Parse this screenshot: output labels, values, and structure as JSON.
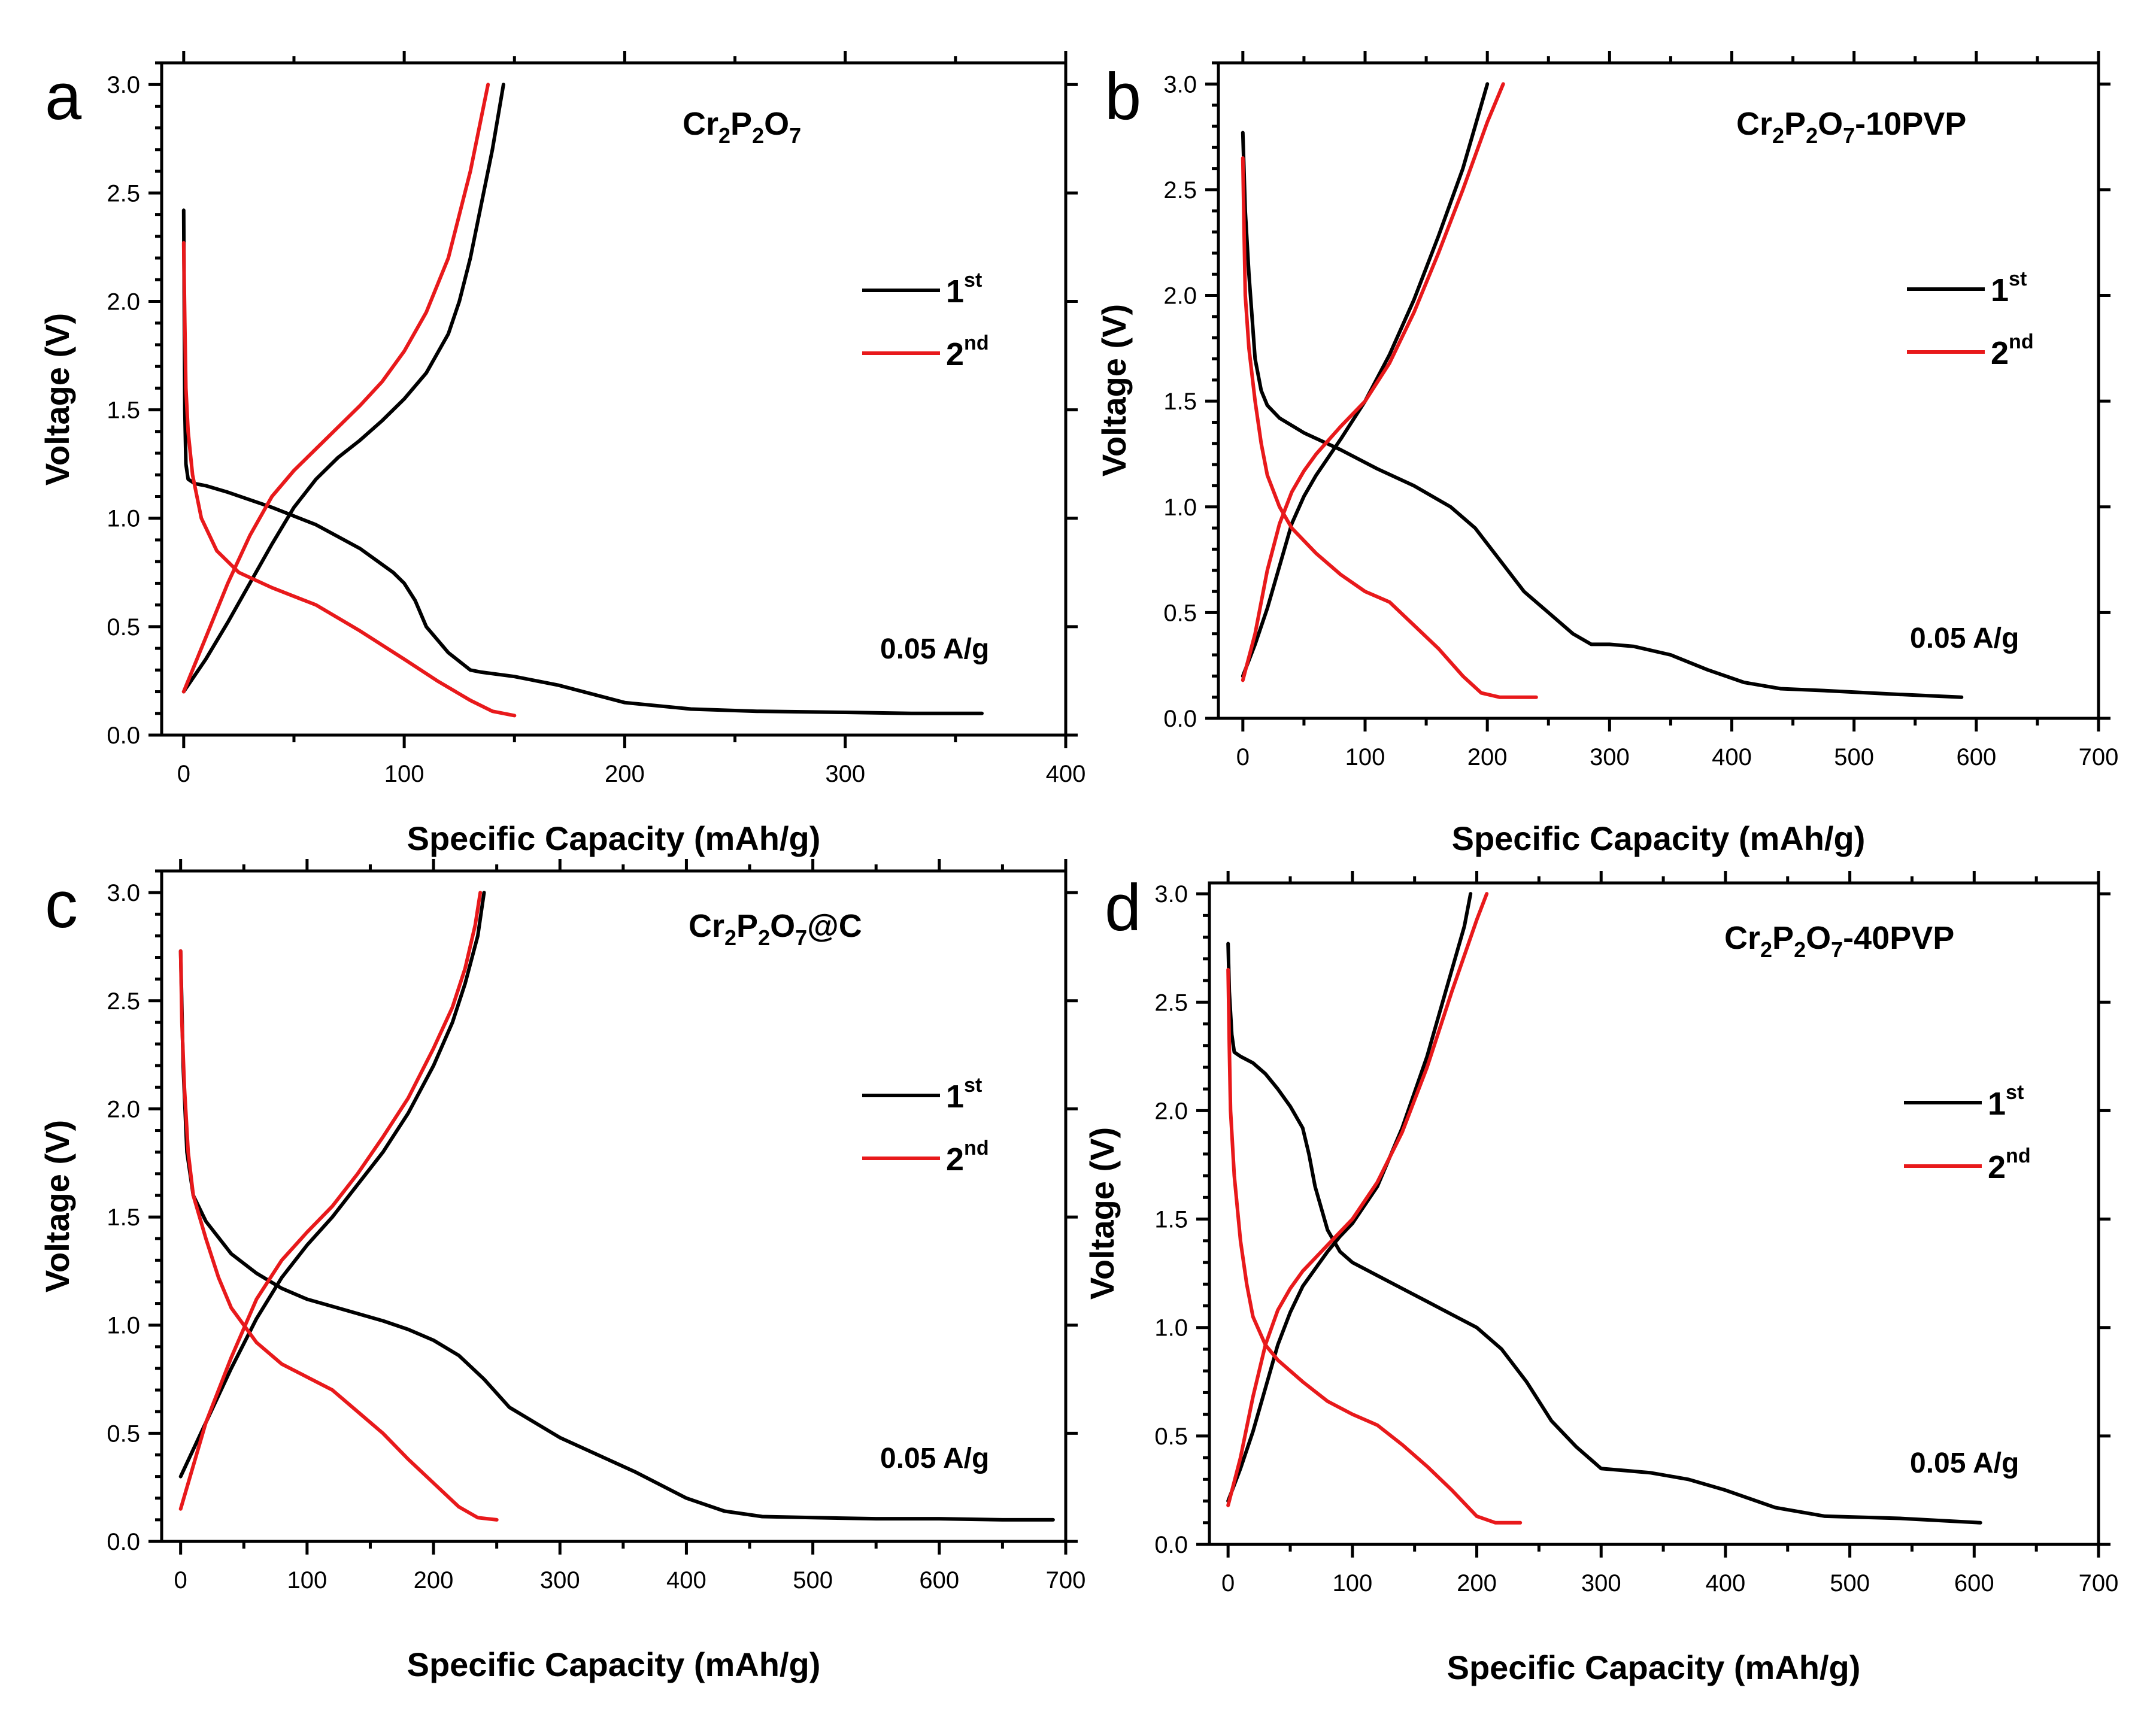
{
  "chart_data": [
    {
      "letter": "a",
      "type": "line",
      "title_parts": {
        "el1": "Cr",
        "sub1": "2",
        "el2": "P",
        "sub2": "2",
        "el3": "O",
        "sub3": "7",
        "suffix": ""
      },
      "xlabel": "Specific Capacity (mAh/g)",
      "ylabel": "Voltage (V)",
      "xlim": [
        -10,
        400
      ],
      "ylim": [
        0,
        3.1
      ],
      "xticks": [
        0,
        100,
        200,
        300,
        400
      ],
      "yticks": [
        0.0,
        0.5,
        1.0,
        1.5,
        2.0,
        2.5,
        3.0
      ],
      "rate": "0.05 A/g",
      "legend": [
        {
          "base": "1",
          "sup": "st",
          "color": "#000000"
        },
        {
          "base": "2",
          "sup": "nd",
          "color": "#e8191b"
        }
      ],
      "series": [
        {
          "name": "1st discharge",
          "color": "#000000",
          "x": [
            0,
            0.5,
            1,
            2,
            5,
            10,
            20,
            40,
            60,
            80,
            95,
            100,
            105,
            110,
            120,
            130,
            135,
            150,
            170,
            200,
            230,
            260,
            300,
            330,
            362
          ],
          "y": [
            2.42,
            1.5,
            1.25,
            1.18,
            1.16,
            1.15,
            1.12,
            1.05,
            0.97,
            0.86,
            0.75,
            0.7,
            0.62,
            0.5,
            0.38,
            0.3,
            0.29,
            0.27,
            0.23,
            0.15,
            0.12,
            0.11,
            0.105,
            0.1,
            0.1
          ]
        },
        {
          "name": "1st charge",
          "color": "#000000",
          "x": [
            0,
            10,
            20,
            30,
            40,
            50,
            60,
            70,
            80,
            90,
            100,
            110,
            120,
            125,
            130,
            135,
            140,
            143,
            145
          ],
          "y": [
            0.2,
            0.35,
            0.52,
            0.7,
            0.88,
            1.05,
            1.18,
            1.28,
            1.36,
            1.45,
            1.55,
            1.67,
            1.85,
            2.0,
            2.2,
            2.45,
            2.7,
            2.88,
            3.0
          ]
        },
        {
          "name": "2nd discharge",
          "color": "#e8191b",
          "x": [
            0,
            0.5,
            1,
            2,
            4,
            8,
            15,
            25,
            40,
            60,
            80,
            100,
            115,
            130,
            140,
            150
          ],
          "y": [
            2.27,
            1.9,
            1.6,
            1.4,
            1.2,
            1.0,
            0.85,
            0.75,
            0.68,
            0.6,
            0.48,
            0.35,
            0.25,
            0.16,
            0.11,
            0.09
          ]
        },
        {
          "name": "2nd charge",
          "color": "#e8191b",
          "x": [
            0,
            10,
            20,
            30,
            40,
            50,
            60,
            70,
            80,
            90,
            100,
            110,
            120,
            125,
            130,
            135,
            138
          ],
          "y": [
            0.2,
            0.45,
            0.7,
            0.92,
            1.1,
            1.22,
            1.32,
            1.42,
            1.52,
            1.63,
            1.77,
            1.95,
            2.2,
            2.4,
            2.6,
            2.85,
            3.0
          ]
        }
      ]
    },
    {
      "letter": "b",
      "type": "line",
      "title_parts": {
        "el1": "Cr",
        "sub1": "2",
        "el2": "P",
        "sub2": "2",
        "el3": "O",
        "sub3": "7",
        "suffix": "-10PVP"
      },
      "xlabel": "Specific Capacity (mAh/g)",
      "ylabel": "Voltage (V)",
      "xlim": [
        -20,
        700
      ],
      "ylim": [
        0,
        3.1
      ],
      "xticks": [
        0,
        100,
        200,
        300,
        400,
        500,
        600,
        700
      ],
      "yticks": [
        0.0,
        0.5,
        1.0,
        1.5,
        2.0,
        2.5,
        3.0
      ],
      "rate": "0.05 A/g",
      "legend": [
        {
          "base": "1",
          "sup": "st",
          "color": "#000000"
        },
        {
          "base": "2",
          "sup": "nd",
          "color": "#e8191b"
        }
      ],
      "series": [
        {
          "name": "1st discharge",
          "color": "#000000",
          "x": [
            0,
            2,
            5,
            10,
            15,
            20,
            30,
            50,
            80,
            110,
            140,
            170,
            190,
            210,
            230,
            250,
            270,
            285,
            300,
            320,
            350,
            380,
            410,
            440,
            480,
            530,
            588
          ],
          "y": [
            2.77,
            2.4,
            2.1,
            1.7,
            1.55,
            1.48,
            1.42,
            1.35,
            1.27,
            1.18,
            1.1,
            1.0,
            0.9,
            0.75,
            0.6,
            0.5,
            0.4,
            0.35,
            0.35,
            0.34,
            0.3,
            0.23,
            0.17,
            0.14,
            0.13,
            0.115,
            0.1
          ]
        },
        {
          "name": "1st charge",
          "color": "#000000",
          "x": [
            0,
            10,
            20,
            30,
            40,
            50,
            60,
            80,
            100,
            120,
            140,
            160,
            180,
            190,
            200
          ],
          "y": [
            0.2,
            0.35,
            0.52,
            0.72,
            0.92,
            1.05,
            1.15,
            1.32,
            1.5,
            1.72,
            1.98,
            2.28,
            2.6,
            2.8,
            3.0
          ]
        },
        {
          "name": "2nd discharge",
          "color": "#e8191b",
          "x": [
            0,
            1,
            2,
            5,
            10,
            15,
            20,
            30,
            40,
            60,
            80,
            100,
            120,
            140,
            160,
            180,
            195,
            210,
            240
          ],
          "y": [
            2.65,
            2.3,
            2.0,
            1.75,
            1.5,
            1.3,
            1.15,
            1.0,
            0.9,
            0.78,
            0.68,
            0.6,
            0.55,
            0.44,
            0.33,
            0.2,
            0.12,
            0.1,
            0.1
          ]
        },
        {
          "name": "2nd charge",
          "color": "#e8191b",
          "x": [
            0,
            10,
            20,
            30,
            40,
            50,
            60,
            80,
            100,
            120,
            140,
            160,
            180,
            200,
            213
          ],
          "y": [
            0.18,
            0.4,
            0.7,
            0.92,
            1.07,
            1.17,
            1.25,
            1.38,
            1.5,
            1.68,
            1.92,
            2.2,
            2.5,
            2.82,
            3.0
          ]
        }
      ]
    },
    {
      "letter": "c",
      "type": "line",
      "title_parts": {
        "el1": "Cr",
        "sub1": "2",
        "el2": "P",
        "sub2": "2",
        "el3": "O",
        "sub3": "7",
        "suffix": "@C"
      },
      "xlabel": "Specific Capacity (mAh/g)",
      "ylabel": "Voltage (V)",
      "xlim": [
        -15,
        700
      ],
      "ylim": [
        0,
        3.1
      ],
      "xticks": [
        0,
        100,
        200,
        300,
        400,
        500,
        600,
        700
      ],
      "yticks": [
        0.0,
        0.5,
        1.0,
        1.5,
        2.0,
        2.5,
        3.0
      ],
      "rate": "0.05 A/g",
      "legend": [
        {
          "base": "1",
          "sup": "st",
          "color": "#000000"
        },
        {
          "base": "2",
          "sup": "nd",
          "color": "#e8191b"
        }
      ],
      "series": [
        {
          "name": "1st discharge",
          "color": "#000000",
          "x": [
            0,
            2,
            5,
            10,
            20,
            40,
            60,
            80,
            100,
            130,
            160,
            180,
            200,
            220,
            240,
            260,
            280,
            300,
            330,
            360,
            400,
            430,
            460,
            500,
            550,
            600,
            650,
            690
          ],
          "y": [
            2.73,
            2.2,
            1.8,
            1.6,
            1.48,
            1.33,
            1.24,
            1.17,
            1.12,
            1.07,
            1.02,
            0.98,
            0.93,
            0.86,
            0.75,
            0.62,
            0.55,
            0.48,
            0.4,
            0.32,
            0.2,
            0.14,
            0.115,
            0.11,
            0.105,
            0.105,
            0.1,
            0.1
          ]
        },
        {
          "name": "1st charge",
          "color": "#000000",
          "x": [
            0,
            20,
            40,
            60,
            80,
            100,
            120,
            140,
            160,
            180,
            200,
            215,
            225,
            235,
            240
          ],
          "y": [
            0.3,
            0.55,
            0.8,
            1.03,
            1.22,
            1.37,
            1.5,
            1.65,
            1.8,
            1.98,
            2.2,
            2.4,
            2.58,
            2.8,
            3.0
          ]
        },
        {
          "name": "2nd discharge",
          "color": "#e8191b",
          "x": [
            0,
            1,
            3,
            6,
            10,
            20,
            30,
            40,
            60,
            80,
            100,
            120,
            140,
            160,
            180,
            200,
            220,
            235,
            250
          ],
          "y": [
            2.73,
            2.4,
            2.1,
            1.8,
            1.6,
            1.4,
            1.22,
            1.08,
            0.92,
            0.82,
            0.76,
            0.7,
            0.6,
            0.5,
            0.38,
            0.27,
            0.16,
            0.11,
            0.1
          ]
        },
        {
          "name": "2nd charge",
          "color": "#e8191b",
          "x": [
            0,
            20,
            40,
            60,
            80,
            100,
            120,
            140,
            160,
            180,
            200,
            215,
            225,
            233,
            237
          ],
          "y": [
            0.15,
            0.55,
            0.85,
            1.12,
            1.3,
            1.43,
            1.55,
            1.7,
            1.87,
            2.05,
            2.28,
            2.47,
            2.65,
            2.85,
            3.0
          ]
        }
      ]
    },
    {
      "letter": "d",
      "type": "line",
      "title_parts": {
        "el1": "Cr",
        "sub1": "2",
        "el2": "P",
        "sub2": "2",
        "el3": "O",
        "sub3": "7",
        "suffix": "-40PVP"
      },
      "xlabel": "Specific Capacity (mAh/g)",
      "ylabel": "Voltage (V)",
      "xlim": [
        -15,
        700
      ],
      "ylim": [
        0,
        3.05
      ],
      "xticks": [
        0,
        100,
        200,
        300,
        400,
        500,
        600,
        700
      ],
      "yticks": [
        0.0,
        0.5,
        1.0,
        1.5,
        2.0,
        2.5,
        3.0
      ],
      "rate": "0.05 A/g",
      "legend": [
        {
          "base": "1",
          "sup": "st",
          "color": "#000000"
        },
        {
          "base": "2",
          "sup": "nd",
          "color": "#e8191b"
        }
      ],
      "series": [
        {
          "name": "1st discharge",
          "color": "#000000",
          "x": [
            0,
            1,
            3,
            5,
            10,
            20,
            30,
            40,
            50,
            60,
            65,
            70,
            75,
            80,
            90,
            100,
            120,
            140,
            160,
            180,
            200,
            220,
            240,
            260,
            280,
            300,
            320,
            340,
            370,
            400,
            440,
            480,
            540,
            605
          ],
          "y": [
            2.77,
            2.55,
            2.35,
            2.27,
            2.25,
            2.22,
            2.17,
            2.1,
            2.02,
            1.92,
            1.8,
            1.65,
            1.55,
            1.45,
            1.35,
            1.3,
            1.24,
            1.18,
            1.12,
            1.06,
            1.0,
            0.9,
            0.75,
            0.57,
            0.45,
            0.35,
            0.34,
            0.33,
            0.3,
            0.25,
            0.17,
            0.13,
            0.12,
            0.1
          ]
        },
        {
          "name": "1st charge",
          "color": "#000000",
          "x": [
            0,
            10,
            20,
            30,
            40,
            50,
            60,
            70,
            80,
            90,
            100,
            120,
            140,
            160,
            180,
            190,
            195
          ],
          "y": [
            0.2,
            0.35,
            0.52,
            0.72,
            0.92,
            1.07,
            1.19,
            1.27,
            1.35,
            1.42,
            1.48,
            1.65,
            1.92,
            2.25,
            2.65,
            2.85,
            3.0
          ]
        },
        {
          "name": "2nd discharge",
          "color": "#e8191b",
          "x": [
            0,
            1,
            2,
            5,
            10,
            15,
            20,
            30,
            40,
            60,
            80,
            100,
            120,
            140,
            160,
            180,
            200,
            215,
            235
          ],
          "y": [
            2.65,
            2.3,
            2.0,
            1.7,
            1.4,
            1.2,
            1.05,
            0.92,
            0.85,
            0.75,
            0.66,
            0.6,
            0.55,
            0.46,
            0.36,
            0.25,
            0.13,
            0.1,
            0.1
          ]
        },
        {
          "name": "2nd charge",
          "color": "#e8191b",
          "x": [
            0,
            10,
            20,
            30,
            40,
            50,
            60,
            70,
            80,
            100,
            120,
            140,
            160,
            180,
            200,
            208
          ],
          "y": [
            0.18,
            0.4,
            0.68,
            0.92,
            1.08,
            1.18,
            1.26,
            1.32,
            1.38,
            1.5,
            1.67,
            1.9,
            2.2,
            2.55,
            2.88,
            3.0
          ]
        }
      ]
    }
  ]
}
